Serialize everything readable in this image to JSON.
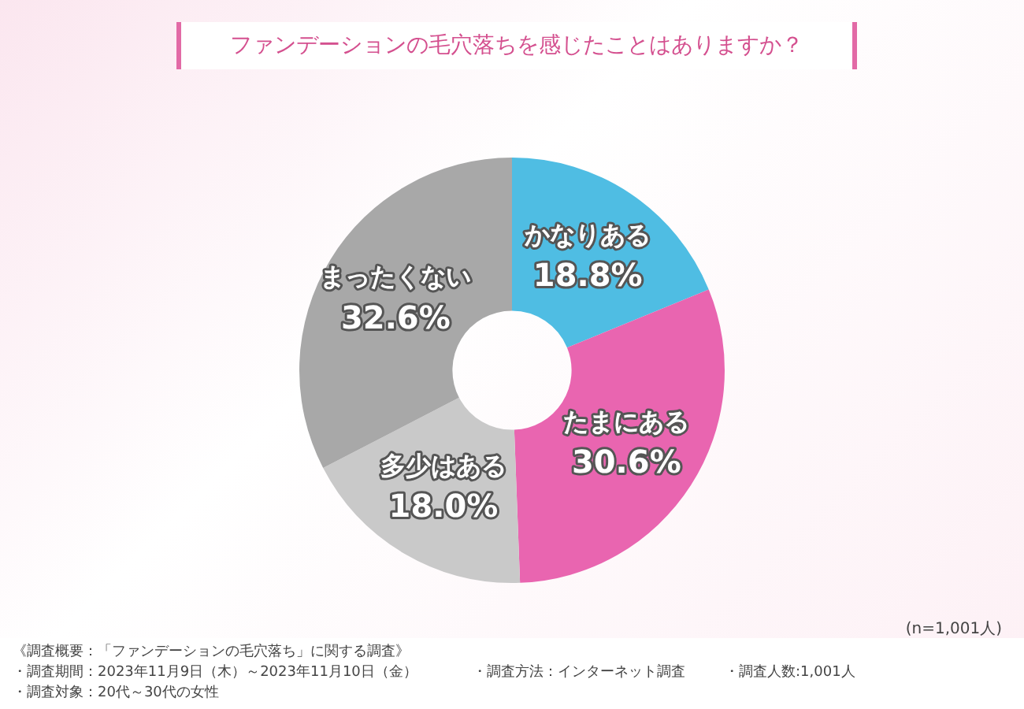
{
  "chart_data": {
    "type": "donut",
    "title": "ファンデーションの毛穴落ちを感じたことはありますか？",
    "categories": [
      "かなりある",
      "たまにある",
      "多少はある",
      "まったくない"
    ],
    "values": [
      18.8,
      30.6,
      18.0,
      32.6
    ],
    "value_labels": [
      "18.8%",
      "30.6%",
      "18.0%",
      "32.6%"
    ],
    "colors": [
      "#4fbde3",
      "#e965b0",
      "#c9c9c9",
      "#a8a8a8"
    ],
    "legend": false,
    "annotations": [
      "(n=1,001人)",
      "《調査概要：「ファンデーションの毛穴落ち」に関する調査》",
      "・調査期間：2023年11月9日（木）～2023年11月10日（金）",
      "・調査対象：20代～30代の女性",
      "・調査方法：インターネット調査",
      "・調査人数:1,001人"
    ]
  }
}
